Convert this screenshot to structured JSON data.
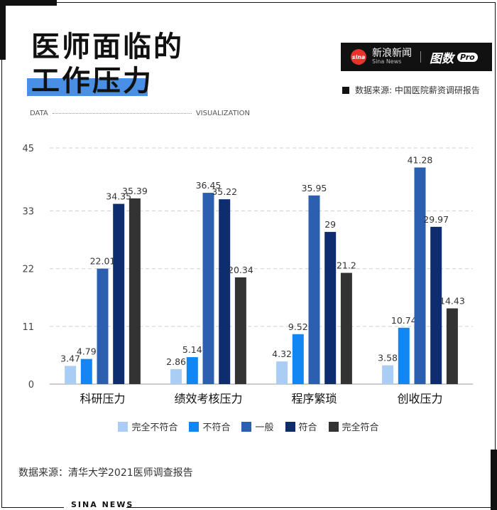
{
  "title": {
    "line1": "医师面临的",
    "line2": "工作压力"
  },
  "logo": {
    "eye_text": "sina",
    "name_cn": "新浪新闻",
    "name_en": "Sina News",
    "brand": "图数",
    "pro": "Pro"
  },
  "source_top": "数据来源: 中国医院薪资调研报告",
  "dataviz": {
    "left": "DATA",
    "right": "VISUALIZATION"
  },
  "source_bottom": "数据来源：清华大学2021医师调查报告",
  "footer_brand": "SINA NEWS",
  "icons": {
    "logo": "sina-eye-logo-icon"
  },
  "chart_data": {
    "type": "bar",
    "categories": [
      "科研压力",
      "绩效考核压力",
      "程序繁琐",
      "创收压力"
    ],
    "series": [
      {
        "name": "完全不符合",
        "color": "#a9cdf5",
        "values": [
          3.47,
          2.86,
          4.32,
          3.58
        ]
      },
      {
        "name": "不符合",
        "color": "#1286f2",
        "values": [
          4.79,
          5.14,
          9.52,
          10.74
        ]
      },
      {
        "name": "一般",
        "color": "#2d5fb0",
        "values": [
          22.01,
          36.45,
          35.95,
          41.28
        ]
      },
      {
        "name": "符合",
        "color": "#0d2d6e",
        "values": [
          34.35,
          35.22,
          29,
          29.97
        ]
      },
      {
        "name": "完全符合",
        "color": "#333333",
        "values": [
          35.39,
          20.34,
          21.2,
          14.43
        ]
      }
    ],
    "yticks": [
      "0",
      "11",
      "22",
      "33",
      "45"
    ],
    "ylim": [
      0,
      45
    ],
    "grid": true,
    "legend_position": "bottom"
  }
}
